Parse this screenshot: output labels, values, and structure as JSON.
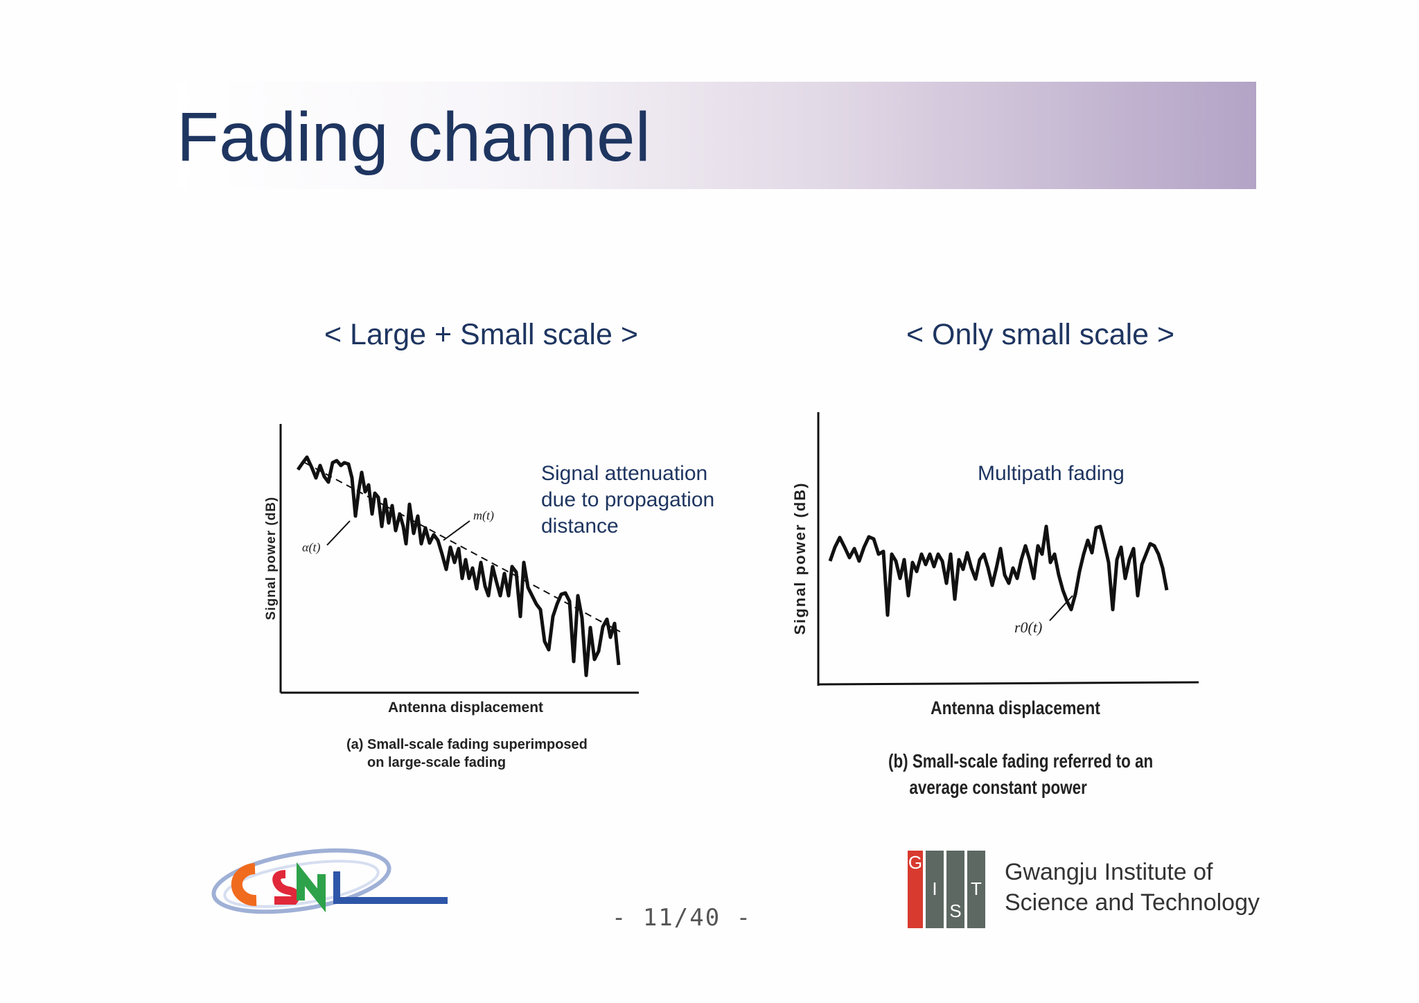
{
  "slide": {
    "title": "Fading channel",
    "page_number": "- 11/40 -"
  },
  "left_panel": {
    "heading": "< Large + Small scale >",
    "annotation": "Signal attenuation due to propagation distance",
    "ylabel": "Signal power (dB)",
    "xlabel": "Antenna displacement",
    "label_alpha": "α(t)",
    "label_m": "m(t)",
    "caption_line1": "(a) Small-scale fading superimposed",
    "caption_line2": "on large-scale fading"
  },
  "right_panel": {
    "heading": "< Only small scale >",
    "annotation": "Multipath fading",
    "ylabel": "Signal power (dB)",
    "xlabel": "Antenna displacement",
    "label_r0": "r0(t)",
    "caption_line1": "(b) Small-scale fading referred to an",
    "caption_line2": "average constant power"
  },
  "logos": {
    "csnl_text": "CSNL",
    "gist_letters": [
      "G",
      "I",
      "S",
      "T"
    ],
    "gist_name_line1": "Gwangju Institute of",
    "gist_name_line2": "Science and Technology"
  },
  "colors": {
    "title_text": "#1e3560",
    "title_gradient_end": "#b3a3c6",
    "gist_red": "#d83a2f",
    "gist_gray": "#5d6863"
  }
}
